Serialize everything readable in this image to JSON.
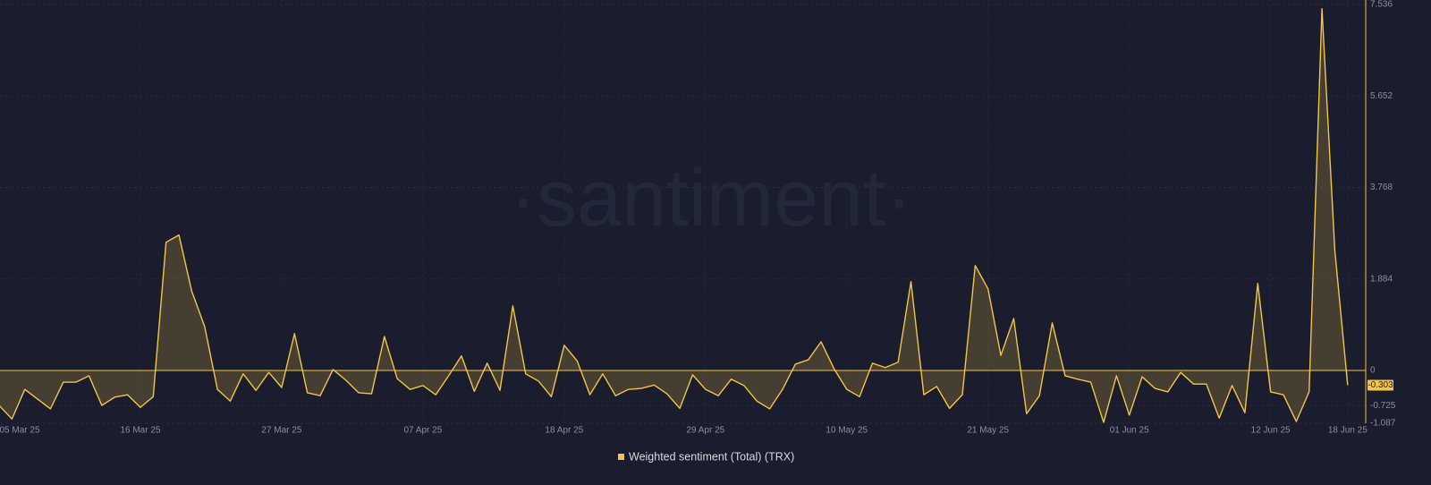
{
  "chart_data": {
    "type": "line",
    "watermark": "·santiment·",
    "categories": [
      "05 Mar 25",
      null,
      null,
      null,
      null,
      null,
      null,
      null,
      null,
      null,
      null,
      "16 Mar 25",
      null,
      null,
      null,
      null,
      null,
      null,
      null,
      null,
      null,
      null,
      "27 Mar 25",
      null,
      null,
      null,
      null,
      null,
      null,
      null,
      null,
      null,
      null,
      "07 Apr 25",
      null,
      null,
      null,
      null,
      null,
      null,
      null,
      null,
      null,
      null,
      "18 Apr 25",
      null,
      null,
      null,
      null,
      null,
      null,
      null,
      null,
      null,
      null,
      "29 Apr 25",
      null,
      null,
      null,
      null,
      null,
      null,
      null,
      null,
      null,
      null,
      "10 May 25",
      null,
      null,
      null,
      null,
      null,
      null,
      null,
      null,
      null,
      null,
      "21 May 25",
      null,
      null,
      null,
      null,
      null,
      null,
      null,
      null,
      null,
      null,
      "01 Jun 25",
      null,
      null,
      null,
      null,
      null,
      null,
      null,
      null,
      null,
      null,
      "12 Jun 25",
      null,
      null,
      null,
      null,
      null,
      "18 Jun 25"
    ],
    "series": [
      {
        "name": "Weighted sentiment (Total) (TRX)",
        "color": "#f5c542",
        "values": [
          -0.72,
          -1.0,
          -0.39,
          -0.59,
          -0.79,
          -0.24,
          -0.24,
          -0.11,
          -0.72,
          -0.55,
          -0.5,
          -0.76,
          -0.54,
          2.64,
          2.79,
          1.63,
          0.91,
          -0.39,
          -0.63,
          -0.07,
          -0.41,
          -0.04,
          -0.35,
          0.76,
          -0.46,
          -0.52,
          0.02,
          -0.2,
          -0.46,
          -0.48,
          0.7,
          -0.17,
          -0.39,
          -0.31,
          -0.5,
          -0.11,
          0.3,
          -0.43,
          0.15,
          -0.41,
          1.33,
          -0.07,
          -0.22,
          -0.54,
          0.52,
          0.2,
          -0.5,
          -0.07,
          -0.52,
          -0.39,
          -0.37,
          -0.3,
          -0.48,
          -0.78,
          -0.09,
          -0.39,
          -0.52,
          -0.18,
          -0.31,
          -0.63,
          -0.79,
          -0.39,
          0.13,
          0.22,
          0.59,
          0.04,
          -0.39,
          -0.54,
          0.15,
          0.06,
          0.17,
          1.83,
          -0.5,
          -0.33,
          -0.78,
          -0.5,
          2.16,
          1.68,
          0.31,
          1.07,
          -0.89,
          -0.52,
          0.98,
          -0.11,
          -0.18,
          -0.24,
          -1.07,
          -0.11,
          -0.92,
          -0.13,
          -0.37,
          -0.44,
          -0.04,
          -0.28,
          -0.28,
          -0.98,
          -0.31,
          -0.87,
          1.79,
          -0.44,
          -0.5,
          -1.05,
          -0.44,
          7.45,
          2.48,
          -0.303
        ]
      }
    ],
    "ylim": [
      -1.087,
      7.536
    ],
    "yticks": [
      -1.087,
      -0.725,
      0,
      1.884,
      3.768,
      5.652,
      7.536
    ],
    "grid": true
  }
}
